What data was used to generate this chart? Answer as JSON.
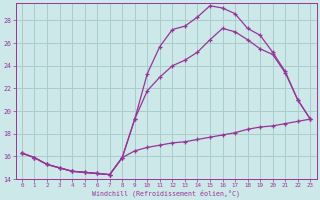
{
  "bg_color": "#cce8e8",
  "grid_color": "#aacccc",
  "line_color": "#993399",
  "marker": "+",
  "xlabel": "Windchill (Refroidissement éolien,°C)",
  "xlim": [
    -0.5,
    23.5
  ],
  "ylim": [
    14,
    29.5
  ],
  "yticks": [
    14,
    16,
    18,
    20,
    22,
    24,
    26,
    28
  ],
  "xticks": [
    0,
    1,
    2,
    3,
    4,
    5,
    6,
    7,
    8,
    9,
    10,
    11,
    12,
    13,
    14,
    15,
    16,
    17,
    18,
    19,
    20,
    21,
    22,
    23
  ],
  "curve1_x": [
    0,
    1,
    2,
    3,
    4,
    5,
    6,
    7,
    8,
    9,
    10,
    11,
    12,
    13,
    14,
    15,
    16,
    17,
    18,
    19,
    20,
    21,
    22,
    23
  ],
  "curve1_y": [
    16.3,
    15.9,
    15.3,
    15.0,
    14.7,
    14.6,
    14.5,
    14.4,
    15.9,
    19.3,
    21.8,
    23.0,
    24.0,
    24.5,
    25.2,
    26.3,
    27.3,
    27.0,
    26.3,
    25.5,
    25.0,
    23.4,
    21.0,
    19.3
  ],
  "curve2_x": [
    0,
    1,
    2,
    3,
    4,
    5,
    6,
    7,
    8,
    9,
    10,
    11,
    12,
    13,
    14,
    15,
    16,
    17,
    18,
    19,
    20,
    21,
    22,
    23
  ],
  "curve2_y": [
    16.3,
    15.9,
    15.3,
    15.0,
    14.7,
    14.6,
    14.5,
    14.4,
    15.9,
    19.3,
    23.3,
    25.7,
    27.2,
    27.5,
    28.3,
    29.3,
    29.1,
    28.6,
    27.3,
    26.7,
    25.2,
    23.5,
    21.0,
    19.3
  ],
  "curve3_x": [
    0,
    1,
    2,
    3,
    4,
    5,
    6,
    7,
    8,
    9,
    10,
    11,
    12,
    13,
    14,
    15,
    16,
    17,
    18,
    19,
    20,
    21,
    22,
    23
  ],
  "curve3_y": [
    16.3,
    15.9,
    15.3,
    15.0,
    14.7,
    14.6,
    14.5,
    14.4,
    15.9,
    16.5,
    16.8,
    17.0,
    17.2,
    17.3,
    17.5,
    17.7,
    17.9,
    18.1,
    18.4,
    18.6,
    18.7,
    18.9,
    19.1,
    19.3
  ]
}
